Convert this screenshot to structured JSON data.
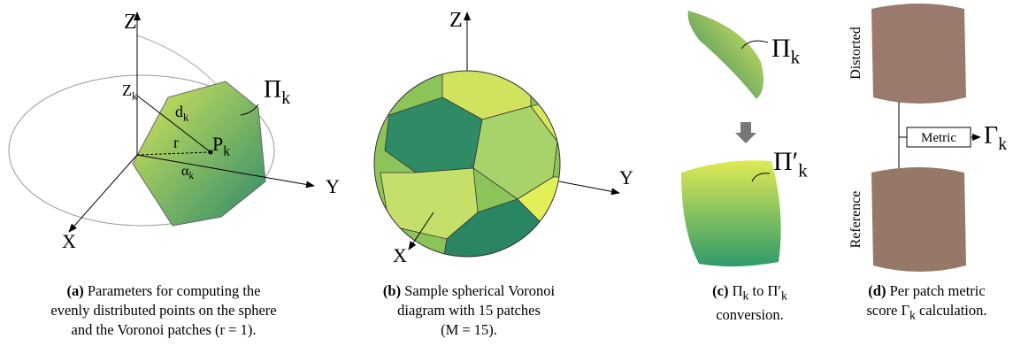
{
  "panels": [
    {
      "labels": [
        {
          "base": "Z"
        },
        {
          "base": "Z",
          "sub": "k"
        },
        {
          "base": "d",
          "sub": "k"
        },
        {
          "base": "r"
        },
        {
          "base": "P",
          "sub": "k"
        },
        {
          "base": "α",
          "sub": "k"
        },
        {
          "base": "Π",
          "sub": "k"
        },
        {
          "base": "Y"
        },
        {
          "base": "X"
        }
      ],
      "caption": {
        "tag": "(a)",
        "lines": [
          [
            "Parameters for computing the"
          ],
          [
            "evenly distributed points on the sphere"
          ],
          [
            "and the Voronoi patches (r = 1)."
          ]
        ]
      }
    },
    {
      "labels": [
        {
          "base": "Z"
        },
        {
          "base": "Y"
        },
        {
          "base": "X"
        }
      ],
      "caption": {
        "tag": "(b)",
        "lines": [
          [
            "Sample spherical Voronoi"
          ],
          [
            "diagram with 15 patches"
          ],
          [
            "(M = 15)."
          ]
        ]
      }
    },
    {
      "labels": [
        {
          "base": "Π",
          "sub": "k"
        },
        {
          "base": "Π′",
          "sub": "k"
        }
      ],
      "caption": {
        "tag": "(c)",
        "lines": [
          [
            "Π",
            {
              "sub": "k"
            },
            " to Π′",
            {
              "sub": "k"
            }
          ],
          [
            "conversion."
          ]
        ]
      }
    },
    {
      "labels": [
        {
          "base": "Distorted"
        },
        {
          "base": "Reference"
        },
        {
          "base": "Metric"
        },
        {
          "base": "Γ",
          "sub": "k"
        }
      ],
      "caption": {
        "tag": "(d)",
        "lines": [
          [
            "Per patch metric"
          ],
          [
            "score Γ",
            {
              "sub": "k"
            },
            " calculation."
          ]
        ]
      }
    }
  ]
}
